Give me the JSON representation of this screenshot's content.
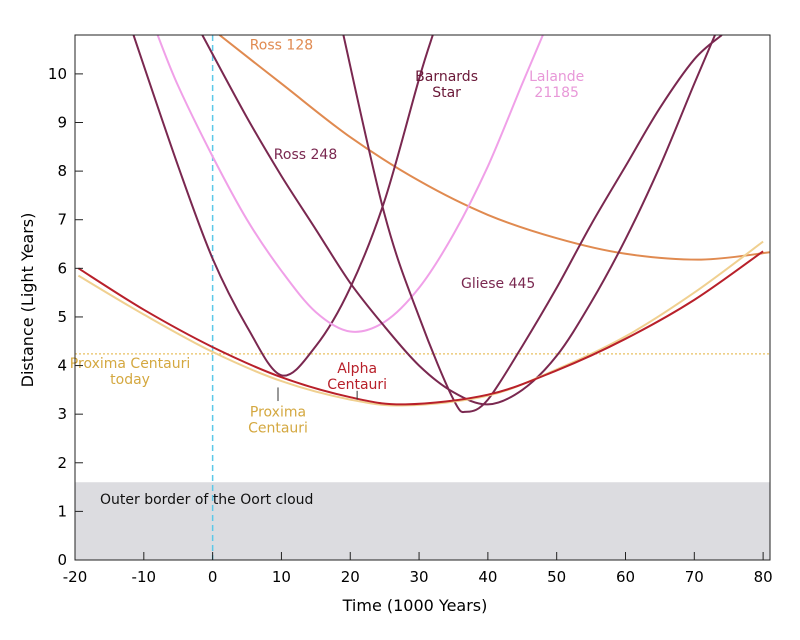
{
  "chart_data": {
    "type": "line",
    "xlabel": "Time (1000 Years)",
    "ylabel": "Distance (Light Years)",
    "xlim": [
      -20,
      81
    ],
    "ylim": [
      0,
      10.8
    ],
    "xticks": [
      -20,
      -10,
      0,
      10,
      20,
      30,
      40,
      50,
      60,
      70,
      80
    ],
    "yticks": [
      0,
      1,
      2,
      3,
      4,
      5,
      6,
      7,
      8,
      9,
      10
    ],
    "oort_cloud": {
      "label": "Outer border of the Oort cloud",
      "y_max": 1.6,
      "color": "#dcdce0"
    },
    "reference_lines": [
      {
        "name": "today",
        "axis": "x",
        "value": 0,
        "color": "#5bc8e8",
        "style": "dashed"
      },
      {
        "name": "proxima-today",
        "axis": "y",
        "value": 4.24,
        "color": "#e8c060",
        "style": "dotted"
      }
    ],
    "annotations": [
      {
        "name": "label-proxima-today",
        "lines": [
          "Proxima Centauri",
          "today"
        ],
        "color": "#d4a840",
        "x": -12,
        "y": 3.95
      },
      {
        "name": "label-proxima-centauri",
        "lines": [
          "Proxima",
          "Centauri"
        ],
        "color": "#d4a840",
        "x": 9.5,
        "y": 2.95
      },
      {
        "name": "label-alpha-centauri",
        "lines": [
          "Alpha",
          "Centauri"
        ],
        "color": "#b8202a",
        "x": 21,
        "y": 3.85
      },
      {
        "name": "label-ross-128",
        "lines": [
          "Ross 128"
        ],
        "color": "#e08a50",
        "x": 10,
        "y": 10.5
      },
      {
        "name": "label-barnards-star",
        "lines": [
          "Barnards",
          "Star"
        ],
        "color": "#6a1838",
        "x": 34,
        "y": 9.85
      },
      {
        "name": "label-lalande",
        "lines": [
          "Lalande",
          "21185"
        ],
        "color": "#e898d8",
        "x": 50,
        "y": 9.85
      },
      {
        "name": "label-ross-248",
        "lines": [
          "Ross 248"
        ],
        "color": "#7a2850",
        "x": 13.5,
        "y": 8.25
      },
      {
        "name": "label-gliese-445",
        "lines": [
          "Gliese 445"
        ],
        "color": "#7a2850",
        "x": 41.5,
        "y": 5.6
      }
    ],
    "series": [
      {
        "name": "Ross 128",
        "color": "#e08a50",
        "x": [
          1,
          10,
          20,
          30,
          40,
          50,
          60,
          71,
          81
        ],
        "y": [
          10.8,
          9.8,
          8.7,
          7.8,
          7.1,
          6.62,
          6.3,
          6.18,
          6.33
        ]
      },
      {
        "name": "Barnards Star",
        "color": "#7a2850",
        "x": [
          -11.5,
          -5,
          0,
          5,
          10,
          15,
          20,
          25,
          30,
          32
        ],
        "y": [
          10.8,
          8.1,
          6.2,
          4.8,
          3.8,
          4.4,
          5.6,
          7.4,
          9.9,
          10.8
        ]
      },
      {
        "name": "Lalande 21185",
        "color": "#f0a0e8",
        "x": [
          -8,
          -5,
          0,
          5,
          10,
          15,
          20,
          25,
          30,
          35,
          40,
          45,
          48
        ],
        "y": [
          10.8,
          9.75,
          8.3,
          7.0,
          5.95,
          5.1,
          4.7,
          4.9,
          5.6,
          6.7,
          8.1,
          9.8,
          10.8
        ]
      },
      {
        "name": "Ross 248",
        "color": "#7a2850",
        "x": [
          -1.5,
          5,
          10,
          15,
          20,
          25,
          30,
          35,
          40,
          45,
          50,
          55,
          60,
          65,
          70,
          73
        ],
        "y": [
          10.8,
          9.1,
          7.9,
          6.8,
          5.7,
          4.8,
          4.0,
          3.45,
          3.2,
          3.5,
          4.2,
          5.3,
          6.6,
          8.1,
          9.8,
          10.8
        ]
      },
      {
        "name": "Gliese 445",
        "color": "#7a2850",
        "x": [
          19,
          25,
          30,
          35,
          37,
          40,
          45,
          50,
          55,
          60,
          65,
          70,
          74
        ],
        "y": [
          10.8,
          7.1,
          5.0,
          3.3,
          3.05,
          3.3,
          4.4,
          5.6,
          6.9,
          8.1,
          9.3,
          10.3,
          10.8
        ]
      },
      {
        "name": "Proxima Centauri",
        "color": "#f0d090",
        "x": [
          -19.5,
          -10,
          0,
          10,
          20,
          28,
          40,
          50,
          60,
          70,
          80
        ],
        "y": [
          5.85,
          5.05,
          4.28,
          3.68,
          3.3,
          3.18,
          3.38,
          3.92,
          4.6,
          5.5,
          6.55
        ]
      },
      {
        "name": "Alpha Centauri",
        "color": "#b8202a",
        "x": [
          -19.5,
          -10,
          0,
          10,
          20,
          28,
          40,
          50,
          60,
          70,
          80
        ],
        "y": [
          6.0,
          5.15,
          4.38,
          3.76,
          3.35,
          3.2,
          3.4,
          3.9,
          4.55,
          5.35,
          6.35
        ]
      }
    ]
  }
}
